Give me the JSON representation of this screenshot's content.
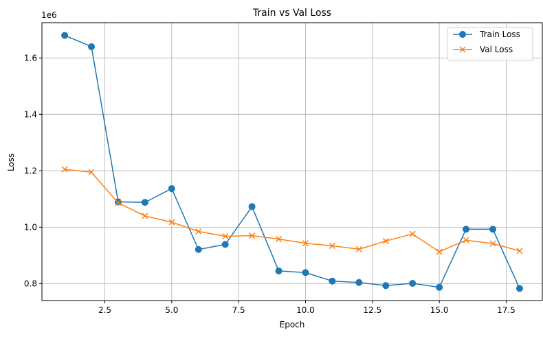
{
  "chart_data": {
    "type": "line",
    "title": "Train vs Val Loss",
    "xlabel": "Epoch",
    "ylabel": "Loss",
    "y_offset_label": "1e6",
    "xlim": [
      0.15,
      18.85
    ],
    "ylim": [
      0.74,
      1.725
    ],
    "x_ticks": [
      2.5,
      5.0,
      7.5,
      10.0,
      12.5,
      15.0,
      17.5
    ],
    "x_tick_labels": [
      "2.5",
      "5.0",
      "7.5",
      "10.0",
      "12.5",
      "15.0",
      "17.5"
    ],
    "y_ticks": [
      0.8,
      1.0,
      1.2,
      1.4,
      1.6
    ],
    "y_tick_labels": [
      "0.8",
      "1.0",
      "1.2",
      "1.4",
      "1.6"
    ],
    "grid": true,
    "legend_position": "top-right",
    "x": [
      1,
      2,
      3,
      4,
      5,
      6,
      7,
      8,
      9,
      10,
      11,
      12,
      13,
      14,
      15,
      16,
      17,
      18
    ],
    "series": [
      {
        "name": "Train Loss",
        "marker": "circle",
        "color": "#1f77b4",
        "values": [
          1.68,
          1.64,
          1.09,
          1.088,
          1.137,
          0.921,
          0.939,
          1.073,
          0.845,
          0.839,
          0.809,
          0.804,
          0.793,
          0.801,
          0.787,
          0.993,
          0.993,
          0.783
        ]
      },
      {
        "name": "Val Loss",
        "marker": "x",
        "color": "#ff7f0e",
        "values": [
          1.205,
          1.195,
          1.086,
          1.04,
          1.018,
          0.985,
          0.968,
          0.97,
          0.958,
          0.943,
          0.934,
          0.922,
          0.951,
          0.976,
          0.913,
          0.954,
          0.942,
          0.916
        ]
      }
    ]
  }
}
